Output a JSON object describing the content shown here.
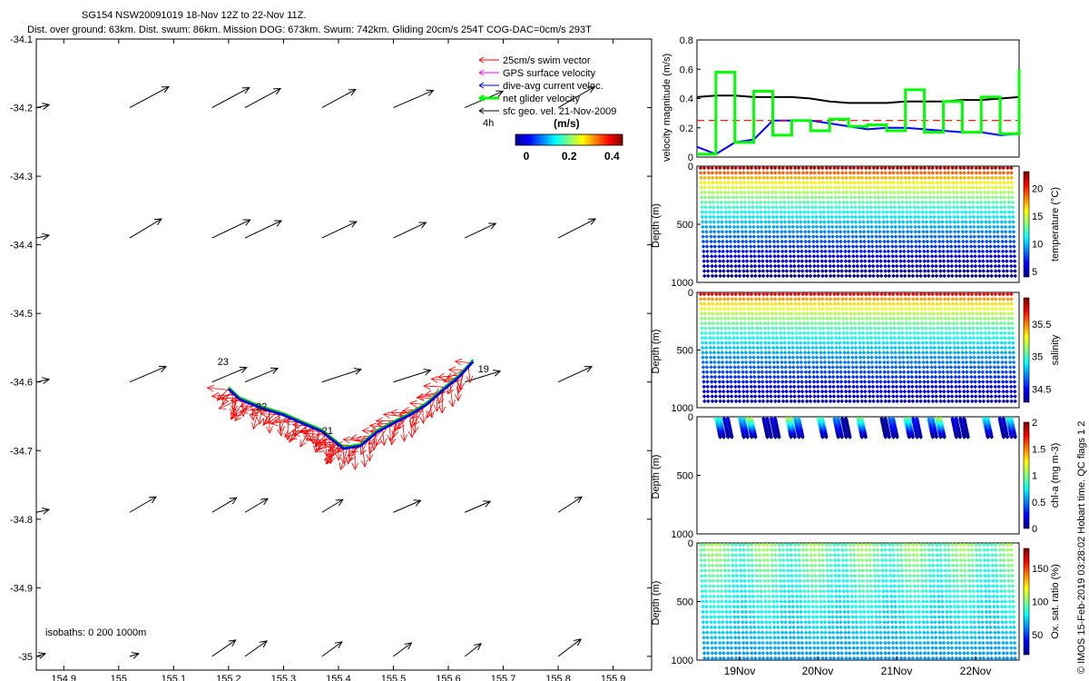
{
  "header": {
    "title_line1": "SG154 NSW20091019 18-Nov 12Z to 22-Nov 11Z.",
    "title_line2": "Dist. over ground: 63km. Dist. swum: 86km. Mission DOG: 673km. Swum: 742km. Gliding 20cm/s 254T COG-DAC=0cm/s 293T"
  },
  "chart_data": [
    {
      "type": "scatter",
      "name": "glider-track-map",
      "xlim": [
        154.85,
        155.97
      ],
      "ylim": [
        -35.02,
        -34.1
      ],
      "xticks": [
        154.9,
        155,
        155.1,
        155.2,
        155.3,
        155.4,
        155.5,
        155.6,
        155.7,
        155.8,
        155.9
      ],
      "xtick_labels": [
        "154.9",
        "155",
        "155.1",
        "155.2",
        "155.3",
        "155.4",
        "155.5",
        "155.6",
        "155.7",
        "155.8",
        "155.9"
      ],
      "yticks": [
        -34.1,
        -34.2,
        -34.3,
        -34.4,
        -34.5,
        -34.6,
        -34.7,
        -34.8,
        -34.9,
        -35
      ],
      "ytick_labels": [
        "-34.1",
        "-34.2",
        "-34.3",
        "-34.4",
        "-34.5",
        "-34.6",
        "-34.7",
        "-34.8",
        "-34.9",
        "-35"
      ],
      "legend": [
        {
          "label": "25cm/s swim vector",
          "color": "#ff0000"
        },
        {
          "label": "GPS surface velocity",
          "color": "#ff00ff"
        },
        {
          "label": "dive-avg current veloc.",
          "color": "#0000ff"
        },
        {
          "label": "net glider velocity",
          "color": "#00ff00"
        },
        {
          "label": "sfc geo. vel. 21-Nov-2009",
          "color": "#000000"
        }
      ],
      "scale_label": "4h",
      "colorbar": {
        "label": "(m/s)",
        "ticks": [
          0,
          0.2,
          0.4
        ],
        "tick_labels": [
          "0",
          "0.2",
          "0.4"
        ],
        "range": [
          0,
          0.5
        ]
      },
      "isobaths_label": "isobaths: 0   200  1000m",
      "track": [
        [
          155.2,
          -34.61
        ],
        [
          155.22,
          -34.625
        ],
        [
          155.26,
          -34.638
        ],
        [
          155.3,
          -34.648
        ],
        [
          155.34,
          -34.662
        ],
        [
          155.37,
          -34.672
        ],
        [
          155.39,
          -34.685
        ],
        [
          155.41,
          -34.697
        ],
        [
          155.44,
          -34.693
        ],
        [
          155.47,
          -34.673
        ],
        [
          155.5,
          -34.66
        ],
        [
          155.53,
          -34.648
        ],
        [
          155.56,
          -34.633
        ],
        [
          155.59,
          -34.612
        ],
        [
          155.62,
          -34.592
        ],
        [
          155.645,
          -34.57
        ]
      ],
      "day_labels": [
        {
          "text": "23",
          "lon": 155.19,
          "lat": -34.575
        },
        {
          "text": "22",
          "lon": 155.26,
          "lat": -34.641
        },
        {
          "text": "21",
          "lon": 155.38,
          "lat": -34.676
        },
        {
          "text": "19",
          "lon": 155.664,
          "lat": -34.586
        }
      ],
      "sfc_vectors": {
        "lons": [
          154.85,
          155.02,
          155.17,
          155.23,
          155.37,
          155.5,
          155.63,
          155.8
        ],
        "lats": [
          -34.2,
          -34.39,
          -34.6,
          -34.79,
          -35
        ]
      }
    },
    {
      "type": "line",
      "name": "velocity-magnitude",
      "ylabel": "velocity magnitude (m/s)",
      "ylim": [
        0,
        0.8
      ],
      "yticks": [
        0,
        0.2,
        0.4,
        0.6,
        0.8
      ],
      "ytick_labels": [
        "0",
        "0.2",
        "0.4",
        "0.6",
        "0.8"
      ],
      "series": [
        {
          "name": "sfc geo. vel.",
          "color": "#000000",
          "values": [
            0.41,
            0.42,
            0.42,
            0.41,
            0.41,
            0.41,
            0.4,
            0.38,
            0.37,
            0.37,
            0.37,
            0.38,
            0.38,
            0.38,
            0.39,
            0.39,
            0.4,
            0.41
          ]
        },
        {
          "name": "dive-avg current",
          "color": "#0000ff",
          "values": [
            0.07,
            0.02,
            0.1,
            0.12,
            0.25,
            0.25,
            0.25,
            0.23,
            0.21,
            0.19,
            0.2,
            0.2,
            0.19,
            0.18,
            0.17,
            0.17,
            0.15,
            0.16
          ]
        },
        {
          "name": "swim speed",
          "color": "#ff0000",
          "values": [
            0.25,
            0.25,
            0.25,
            0.25,
            0.25,
            0.25,
            0.25,
            0.25,
            0.25,
            0.25,
            0.25,
            0.25,
            0.25,
            0.25,
            0.25,
            0.25,
            0.25,
            0.25
          ]
        },
        {
          "name": "net glider velocity",
          "color": "#00ff00",
          "values": [
            0.02,
            0.58,
            0.1,
            0.45,
            0.15,
            0.25,
            0.18,
            0.26,
            0.21,
            0.22,
            0.18,
            0.46,
            0.17,
            0.38,
            0.17,
            0.41,
            0.16,
            0.6
          ]
        }
      ]
    },
    {
      "type": "scatter",
      "name": "temperature-sections",
      "x_range_days": [
        18.52,
        22.5
      ],
      "xticks": [
        "19Nov",
        "20Nov",
        "21Nov",
        "22Nov"
      ],
      "panels": [
        {
          "key": "temperature",
          "ylabel": "Depth (m)",
          "ylim": [
            0,
            1000
          ],
          "yticks": [
            0,
            500,
            1000
          ],
          "ytick_labels": [
            "0",
            "500",
            "1000"
          ],
          "clabel": "temperature (°C)",
          "crange": [
            4,
            23
          ],
          "cticks": [
            5,
            10,
            15,
            20
          ],
          "ctick_labels": [
            "5",
            "10",
            "15",
            "20"
          ],
          "max_depth_m": 960,
          "surface_value": 22,
          "deep_value": 4.5,
          "clipped_top_m": 0
        },
        {
          "key": "salinity",
          "ylabel": "Depth (m)",
          "ylim": [
            0,
            1000
          ],
          "yticks": [
            0,
            500,
            1000
          ],
          "ytick_labels": [
            "0",
            "500",
            "1000"
          ],
          "clabel": "salinity",
          "crange": [
            34.3,
            35.9
          ],
          "cticks": [
            34.5,
            35,
            35.5
          ],
          "ctick_labels": [
            "34.5",
            "35",
            "35.5"
          ],
          "max_depth_m": 960,
          "surface_value": 35.7,
          "deep_value": 34.4,
          "clipped_top_m": 0
        },
        {
          "key": "chlorophyll",
          "ylabel": "Depth (m)",
          "ylim": [
            0,
            1000
          ],
          "yticks": [
            0,
            500,
            1000
          ],
          "ytick_labels": [
            "0",
            "500",
            "1000"
          ],
          "clabel": "chl-a (mg m-3)",
          "crange": [
            0,
            2
          ],
          "cticks": [
            0,
            0.5,
            1,
            1.5,
            2
          ],
          "ctick_labels": [
            "0",
            "0.5",
            "1",
            "1.5",
            "2"
          ],
          "max_depth_m": 190,
          "surface_value": 0.9,
          "deep_value": 0.05,
          "clipped_top_m": 0
        },
        {
          "key": "oxygen",
          "ylabel": "Depth (m)",
          "ylim": [
            0,
            1000
          ],
          "yticks": [
            0,
            500,
            1000
          ],
          "ytick_labels": [
            "0",
            "500",
            "1000"
          ],
          "clabel": "Ox. sat. ratio (%)",
          "crange": [
            20,
            180
          ],
          "cticks": [
            50,
            100,
            150
          ],
          "ctick_labels": [
            "50",
            "100",
            "150"
          ],
          "max_depth_m": 1000,
          "surface_value": 98,
          "deep_value": 62,
          "clipped_top_m": 0
        }
      ]
    }
  ],
  "side_label": "© IMOS 15-Feb-2019 03:28:02 Hobart time. QC flags 1  2"
}
